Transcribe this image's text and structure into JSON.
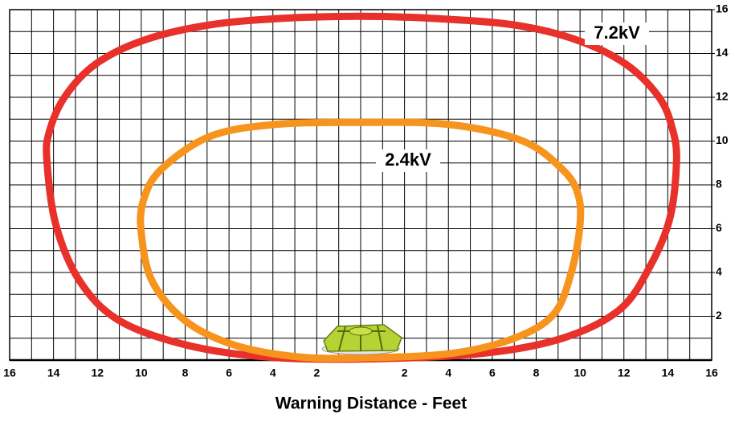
{
  "chart_data": {
    "type": "line",
    "x_label": "Warning Distance - Feet",
    "xlim": [
      -16,
      16
    ],
    "ylim": [
      0,
      16
    ],
    "xticks": [
      {
        "value": -16,
        "label": "16"
      },
      {
        "value": -14,
        "label": "14"
      },
      {
        "value": -12,
        "label": "12"
      },
      {
        "value": -10,
        "label": "10"
      },
      {
        "value": -8,
        "label": "8"
      },
      {
        "value": -6,
        "label": "6"
      },
      {
        "value": -4,
        "label": "4"
      },
      {
        "value": -2,
        "label": "2"
      },
      2,
      4,
      6,
      8,
      10,
      12,
      14,
      16
    ],
    "yticks": [
      2,
      4,
      6,
      8,
      10,
      12,
      14,
      16
    ],
    "x_minor_grid": [
      -15,
      -13,
      -11,
      -9,
      -7,
      -5,
      -3,
      -1,
      0,
      1,
      3,
      5,
      7,
      9,
      11,
      13,
      15
    ],
    "y_minor_grid": [
      1,
      3,
      5,
      7,
      9,
      11,
      13,
      15
    ],
    "grid": true,
    "series": [
      {
        "name": "7.2kV",
        "color": "#e8312a",
        "x": [
          0,
          5.5,
          9.2,
          11.8,
          13.2,
          14.1,
          14.4,
          14.2,
          13.6,
          12.1,
          9.9,
          7.0,
          3.3,
          0,
          -3.6,
          -6.9,
          -9.9,
          -12.1,
          -13.5,
          -14.2,
          -14.3,
          -13.9,
          -12.8,
          -11.0,
          -8.0,
          -4.4
        ],
        "values": [
          0.05,
          0.3,
          1.0,
          2.3,
          4.3,
          6.5,
          9.1,
          10.6,
          12.0,
          13.5,
          14.6,
          15.3,
          15.6,
          15.7,
          15.6,
          15.3,
          14.6,
          13.5,
          12.0,
          10.4,
          9.1,
          6.2,
          3.6,
          1.8,
          0.7,
          0.15
        ]
      },
      {
        "name": "2.4kV",
        "color": "#f7941d",
        "x": [
          0,
          4.1,
          7.0,
          8.8,
          9.6,
          10.0,
          9.9,
          9.2,
          7.4,
          4.1,
          0,
          -4.0,
          -6.9,
          -9.1,
          -9.9,
          -10.0,
          -9.5,
          -8.0,
          -5.8,
          -2.9
        ],
        "values": [
          0.1,
          0.3,
          1.0,
          2.1,
          4.0,
          6.2,
          7.6,
          8.7,
          10.0,
          10.75,
          10.85,
          10.75,
          10.2,
          8.7,
          7.3,
          5.8,
          3.6,
          1.8,
          0.7,
          0.15
        ]
      }
    ]
  }
}
